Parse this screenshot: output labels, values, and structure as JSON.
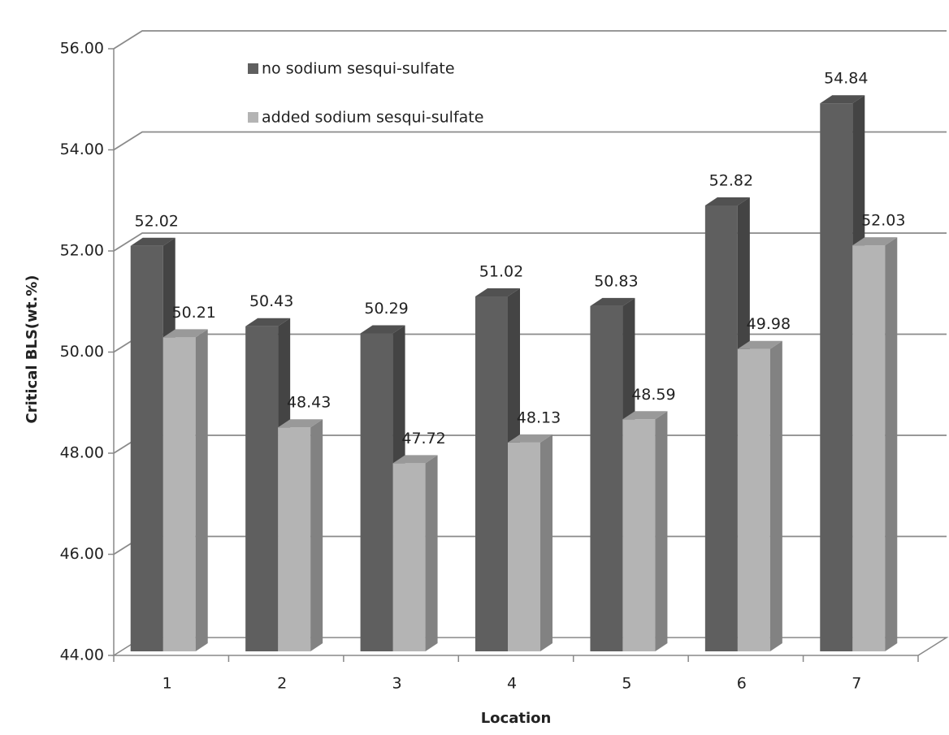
{
  "chart_data": {
    "type": "bar3d",
    "y_label": "Critical BLS(wt.%)",
    "x_label": "Location",
    "categories": [
      "1",
      "2",
      "3",
      "4",
      "5",
      "6",
      "7"
    ],
    "series": [
      {
        "name": "no sodium sesqui-sulfate",
        "color": "#5f5f5f",
        "values": [
          52.02,
          50.43,
          50.29,
          51.02,
          50.83,
          52.82,
          54.84
        ]
      },
      {
        "name": "added sodium sesqui-sulfate",
        "color": "#b4b4b4",
        "values": [
          50.21,
          48.43,
          47.72,
          48.13,
          48.59,
          49.98,
          52.03
        ]
      }
    ],
    "ylim": [
      44,
      56
    ],
    "yticks": [
      {
        "value": 44,
        "label": "44.00"
      },
      {
        "value": 46,
        "label": "46.00"
      },
      {
        "value": 48,
        "label": "48.00"
      },
      {
        "value": 50,
        "label": "50.00"
      },
      {
        "value": 52,
        "label": "52.00"
      },
      {
        "value": 54,
        "label": "54.00"
      },
      {
        "value": 56,
        "label": "56.00"
      }
    ],
    "grid": true
  }
}
